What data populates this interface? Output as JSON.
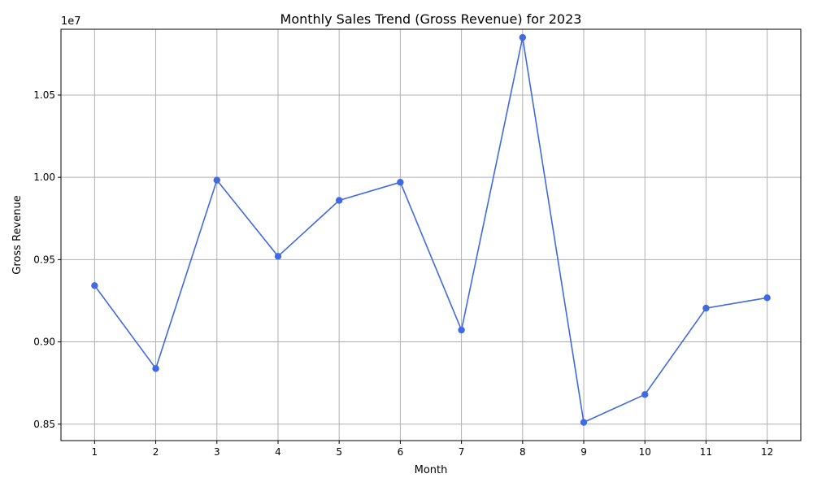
{
  "chart_data": {
    "type": "line",
    "title": "Monthly Sales Trend (Gross Revenue) for 2023",
    "xlabel": "Month",
    "ylabel": "Gross Revenue",
    "y_multiplier_label": "1e7",
    "x": [
      1,
      2,
      3,
      4,
      5,
      6,
      7,
      8,
      9,
      10,
      11,
      12
    ],
    "x_tick_labels": [
      "1",
      "2",
      "3",
      "4",
      "5",
      "6",
      "7",
      "8",
      "9",
      "10",
      "11",
      "12"
    ],
    "values": [
      9342000,
      8838000,
      9983000,
      9520000,
      9860000,
      9970000,
      9072000,
      10850000,
      8511000,
      8680000,
      9205000,
      9268000
    ],
    "y_ticks": [
      8500000,
      9000000,
      9500000,
      10000000,
      10500000
    ],
    "y_tick_labels": [
      "0.85",
      "0.90",
      "0.95",
      "1.00",
      "1.05"
    ],
    "xlim": [
      0.45,
      12.55
    ],
    "ylim": [
      8400000,
      10900000
    ],
    "grid": true,
    "line_color": "#4169e1",
    "grid_color": "#b0b0b0"
  }
}
